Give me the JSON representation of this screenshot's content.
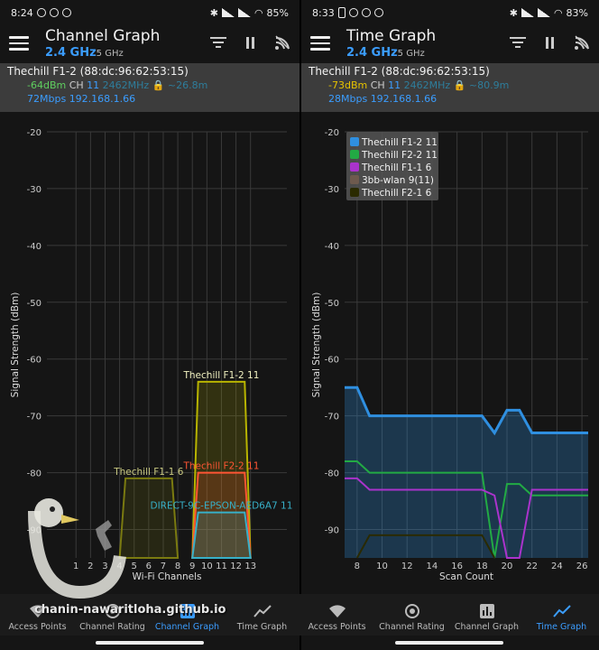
{
  "watermark": "chanin-nawaritloha.github.io",
  "left": {
    "status": {
      "time": "8:24",
      "battery": "85%"
    },
    "title": "Channel Graph",
    "band_primary": "2.4 GHz",
    "band_secondary": "5 GHz",
    "ap": {
      "name": "Thechill F1-2 (88:dc:96:62:53:15)",
      "signal": "-64dBm",
      "ch_label": "CH",
      "channel": "11",
      "freq": "2462MHz",
      "distance": "~26.8m",
      "speed": "72Mbps",
      "ip": "192.168.1.66"
    },
    "chart_data": {
      "type": "area",
      "title": "",
      "xlabel": "Wi-Fi Channels",
      "ylabel": "Signal Strength (dBm)",
      "ylim": [
        -95,
        -20
      ],
      "yticks": [
        "-20",
        "-30",
        "-40",
        "-50",
        "-60",
        "-70",
        "-80",
        "-90"
      ],
      "xticks": [
        "1",
        "2",
        "3",
        "4",
        "5",
        "6",
        "7",
        "8",
        "9",
        "10",
        "11",
        "12",
        "13"
      ],
      "grid": true,
      "series": [
        {
          "name": "Thechill F1-2 11",
          "channel": 11,
          "signal": -64,
          "color": "#b8b400"
        },
        {
          "name": "Thechill F2-2 11",
          "channel": 11,
          "signal": -80,
          "color": "#ff5533"
        },
        {
          "name": "Thechill F1-1 6",
          "channel": 6,
          "signal": -81,
          "color": "#7a7a10"
        },
        {
          "name": "DIRECT-9C-EPSON-AED6A7 11",
          "channel": 11,
          "signal": -87,
          "color": "#37b0c8"
        }
      ]
    }
  },
  "right": {
    "status": {
      "time": "8:33",
      "battery": "83%"
    },
    "title": "Time Graph",
    "band_primary": "2.4 GHz",
    "band_secondary": "5 GHz",
    "ap": {
      "name": "Thechill F1-2 (88:dc:96:62:53:15)",
      "signal": "-73dBm",
      "ch_label": "CH",
      "channel": "11",
      "freq": "2462MHz",
      "distance": "~80.9m",
      "speed": "28Mbps",
      "ip": "192.168.1.66"
    },
    "chart_data": {
      "type": "line",
      "title": "",
      "xlabel": "Scan Count",
      "ylabel": "Signal Strength (dBm)",
      "ylim": [
        -95,
        -20
      ],
      "xlim": [
        7,
        26.5
      ],
      "yticks": [
        "-20",
        "-30",
        "-40",
        "-50",
        "-60",
        "-70",
        "-80",
        "-90"
      ],
      "xticks": [
        "8",
        "10",
        "12",
        "14",
        "16",
        "18",
        "20",
        "22",
        "24",
        "26"
      ],
      "legend": "top-left",
      "grid": true,
      "series": [
        {
          "name": "Thechill F1-2 11",
          "color": "#2f8fe0",
          "x": [
            7,
            8,
            9,
            18,
            19,
            20,
            21,
            22,
            26.5
          ],
          "y": [
            -65,
            -65,
            -70,
            -70,
            -73,
            -69,
            -69,
            -73,
            -73
          ]
        },
        {
          "name": "Thechill F2-2 11",
          "color": "#22aa44",
          "x": [
            7,
            8,
            9,
            18,
            19,
            20,
            21,
            22,
            26.5
          ],
          "y": [
            -78,
            -78,
            -80,
            -80,
            -96,
            -82,
            -82,
            -84,
            -84
          ]
        },
        {
          "name": "Thechill F1-1 6",
          "color": "#aa33cc",
          "x": [
            7,
            8,
            9,
            18,
            19,
            20,
            21,
            22,
            26.5
          ],
          "y": [
            -81,
            -81,
            -83,
            -83,
            -84,
            -96,
            -96,
            -83,
            -83
          ]
        },
        {
          "name": "3bb-wlan 9(11)",
          "color": "#6e5a4e",
          "x": [],
          "y": []
        },
        {
          "name": "Thechill F2-1 6",
          "color": "#2a2a00",
          "x": [
            8,
            9,
            18,
            19
          ],
          "y": [
            -96,
            -91,
            -91,
            -96
          ]
        }
      ]
    }
  },
  "nav": [
    {
      "label": "Access Points",
      "icon": "wifi-icon"
    },
    {
      "label": "Channel Rating",
      "icon": "rating-icon"
    },
    {
      "label": "Channel Graph",
      "icon": "bar-chart-icon"
    },
    {
      "label": "Time Graph",
      "icon": "line-chart-icon"
    }
  ]
}
